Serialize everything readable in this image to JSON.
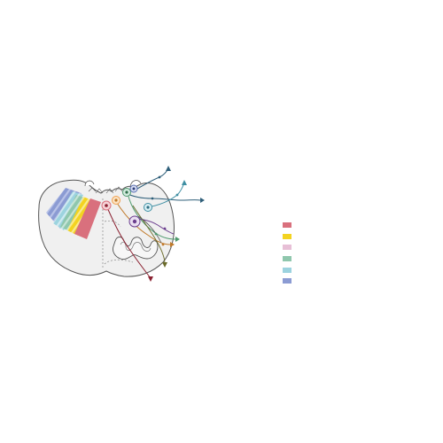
{
  "diagram": {
    "background": "#ffffff",
    "outline_color": "#555555",
    "section_fill": "#f0f0f0",
    "gray_matter_fill": "#f7f7f7",
    "colors": {
      "red": "#d9707d",
      "yellow": "#f3d320",
      "pink": "#e7bfd6",
      "green": "#8fc7ad",
      "light_blue": "#9cd3df",
      "blue": "#8b9bd3",
      "dark_blue": "#2f5f7a",
      "purple": "#6c3f8f",
      "orange": "#f0a050",
      "dark_red": "#8a2030"
    }
  },
  "legend": [
    {
      "color": "#d9707d",
      "label": ""
    },
    {
      "color": "#f3d320",
      "label": ""
    },
    {
      "color": "#e7bfd6",
      "label": ""
    },
    {
      "color": "#8fc7ad",
      "label": ""
    },
    {
      "color": "#9cd3df",
      "label": ""
    },
    {
      "color": "#8b9bd3",
      "label": ""
    }
  ]
}
